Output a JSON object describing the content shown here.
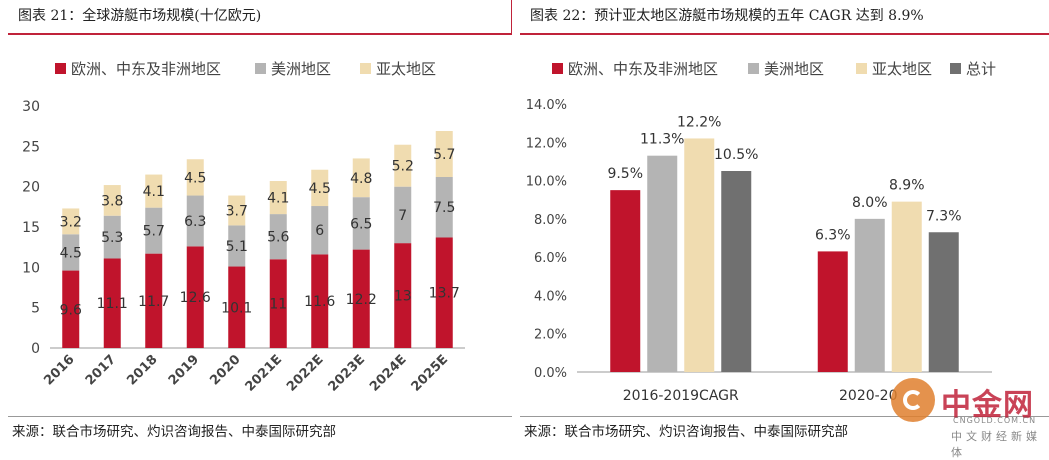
{
  "left": {
    "title": "图表 21：全球游艇市场规模(十亿欧元)",
    "source": "来源：联合市场研究、灼识咨询报告、中泰国际研究部"
  },
  "right": {
    "title": "图表 22：预计亚太地区游艇市场规模的五年 CAGR 达到 8.9%",
    "source": "来源：联合市场研究、灼识咨询报告、中泰国际研究部"
  },
  "watermark": {
    "name": "中金网",
    "url": "CNGOLD.COM.CN",
    "sub": "中文财经新媒体"
  },
  "colors": {
    "red": "#c0142c",
    "gray": "#b4b4b4",
    "beige": "#f0dcb0",
    "dark": "#707070"
  },
  "chart_data": [
    {
      "type": "bar",
      "stacked": true,
      "categories": [
        "2016",
        "2017",
        "2018",
        "2019",
        "2020",
        "2021E",
        "2022E",
        "2023E",
        "2024E",
        "2025E"
      ],
      "series": [
        {
          "name": "欧洲、中东及非洲地区",
          "values": [
            9.6,
            11.1,
            11.7,
            12.6,
            10.1,
            11,
            11.6,
            12.2,
            13,
            13.7
          ],
          "labels": [
            "9.6",
            "11.1",
            "11.7",
            "12.6",
            "10.1",
            "11",
            "11.6",
            "12.2",
            "13",
            "13.7"
          ]
        },
        {
          "name": "美洲地区",
          "values": [
            4.5,
            5.3,
            5.7,
            6.3,
            5.1,
            5.6,
            6,
            6.5,
            7,
            7.5
          ],
          "labels": [
            "4.5",
            "5.3",
            "5.7",
            "6.3",
            "5.1",
            "5.6",
            "6",
            "6.5",
            "7",
            "7.5"
          ]
        },
        {
          "name": "亚太地区",
          "values": [
            3.2,
            3.8,
            4.1,
            4.5,
            3.7,
            4.1,
            4.5,
            4.8,
            5.2,
            5.7
          ],
          "labels": [
            "3.2",
            "3.8",
            "4.1",
            "4.5",
            "3.7",
            "4.1",
            "4.5",
            "4.8",
            "5.2",
            "5.7"
          ]
        }
      ],
      "ylim": [
        0,
        30
      ],
      "yticks": [
        "0",
        "5",
        "10",
        "15",
        "20",
        "25",
        "30"
      ],
      "legend": "top",
      "grid": false
    },
    {
      "type": "bar",
      "stacked": false,
      "categories": [
        "2016-2019CAGR",
        "2020-2025CAGR"
      ],
      "category_labels": [
        "2016-2019CAGR",
        "2020-20"
      ],
      "series": [
        {
          "name": "欧洲、中东及非洲地区",
          "values": [
            9.5,
            6.3
          ],
          "labels": [
            "9.5%",
            "6.3%"
          ]
        },
        {
          "name": "美洲地区",
          "values": [
            11.3,
            8.0
          ],
          "labels": [
            "11.3%",
            "8.0%"
          ]
        },
        {
          "name": "亚太地区",
          "values": [
            12.2,
            8.9
          ],
          "labels": [
            "12.2%",
            "8.9%"
          ]
        },
        {
          "name": "总计",
          "values": [
            10.5,
            7.3
          ],
          "labels": [
            "10.5%",
            "7.3%"
          ]
        }
      ],
      "ylim": [
        0,
        14
      ],
      "yticks": [
        "0.0%",
        "2.0%",
        "4.0%",
        "6.0%",
        "8.0%",
        "10.0%",
        "12.0%",
        "14.0%"
      ],
      "legend": "top",
      "grid": false
    }
  ]
}
